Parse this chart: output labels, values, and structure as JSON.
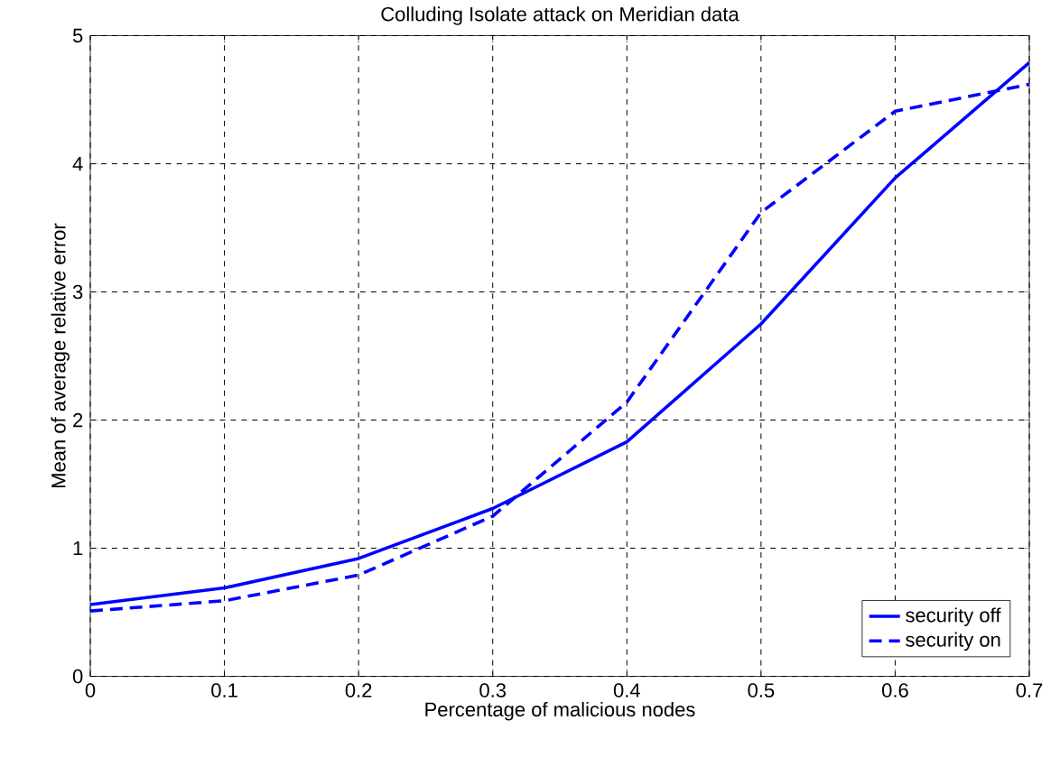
{
  "chart_data": {
    "type": "line",
    "title": "Colluding Isolate attack on Meridian data",
    "xlabel": "Percentage of malicious nodes",
    "ylabel": "Mean of average relative error",
    "x": [
      0,
      0.1,
      0.2,
      0.3,
      0.4,
      0.5,
      0.6,
      0.7
    ],
    "series": [
      {
        "name": "security off",
        "color": "#0000ff",
        "line_style": "solid",
        "values": [
          0.56,
          0.69,
          0.92,
          1.31,
          1.83,
          2.75,
          3.89,
          4.79
        ]
      },
      {
        "name": "security on",
        "color": "#0000ff",
        "line_style": "dashed",
        "values": [
          0.51,
          0.59,
          0.79,
          1.25,
          2.14,
          3.62,
          4.41,
          4.62
        ]
      }
    ],
    "xlim": [
      0,
      0.7
    ],
    "ylim": [
      0,
      5
    ],
    "xticks": [
      0,
      0.1,
      0.2,
      0.3,
      0.4,
      0.5,
      0.6,
      0.7
    ],
    "yticks": [
      0,
      1,
      2,
      3,
      4,
      5
    ],
    "grid": true,
    "legend": "bottom right",
    "marker": "none"
  }
}
